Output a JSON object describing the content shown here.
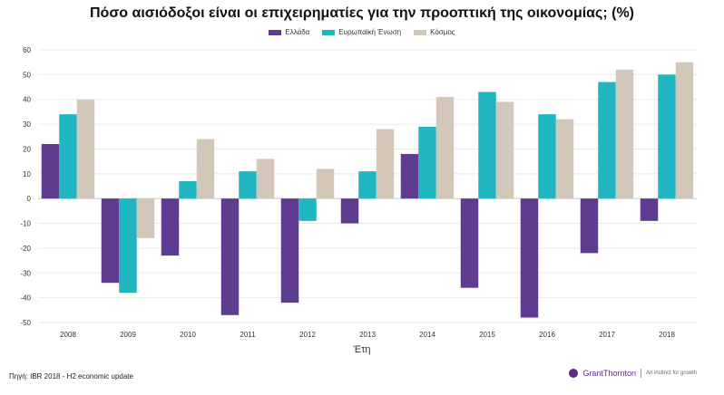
{
  "chart_data": {
    "type": "bar",
    "title": "Πόσο αισιόδοξοι είναι οι επιχειρηματίες για την προοπτική της οικονομίας; (%)",
    "xlabel": "Έτη",
    "ylabel": "",
    "categories": [
      "2008",
      "2009",
      "2010",
      "2011",
      "2012",
      "2013",
      "2014",
      "2015",
      "2016",
      "2017",
      "2018"
    ],
    "series": [
      {
        "name": "Ελλάδα",
        "color": "#5e3c8f",
        "values": [
          22,
          -34,
          -23,
          -47,
          -42,
          -10,
          18,
          -36,
          -48,
          -22,
          -9
        ]
      },
      {
        "name": "Ευρωπαϊκή Ένωση",
        "color": "#1fb5c1",
        "values": [
          34,
          -38,
          7,
          11,
          -9,
          11,
          29,
          43,
          34,
          47,
          50
        ]
      },
      {
        "name": "Κόσμος",
        "color": "#d2c7b9",
        "values": [
          40,
          -16,
          24,
          16,
          12,
          28,
          41,
          39,
          32,
          52,
          55
        ]
      }
    ],
    "ylim": [
      -50,
      60
    ],
    "yticks": [
      -50,
      -40,
      -30,
      -20,
      -10,
      0,
      10,
      20,
      30,
      40,
      50,
      60
    ],
    "grid": true,
    "legend_position": "top-center"
  },
  "source": "Πηγή: IBR 2018 - H2 economic update",
  "brand": {
    "name": "GrantThornton",
    "tagline": "An instinct for growth"
  }
}
